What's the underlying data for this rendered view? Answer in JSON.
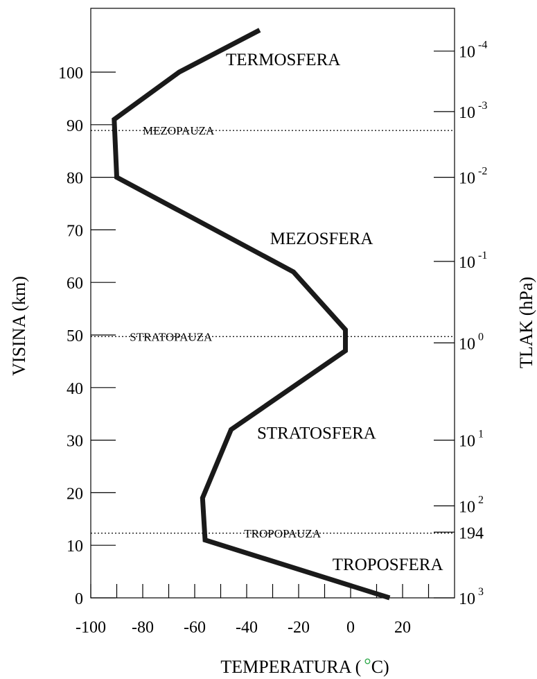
{
  "chart_data": {
    "type": "line",
    "xlabel_prefix": "TEMPERATURA (",
    "xlabel_degree": "°",
    "xlabel_suffix": "C)",
    "ylabel": "VISINA (km)",
    "y2label": "TLAK (hPa)",
    "xlim": [
      -100,
      40
    ],
    "ylim": [
      0,
      110
    ],
    "x_ticks": [
      -100,
      -80,
      -60,
      -40,
      -20,
      0,
      20
    ],
    "x_tick_labels": [
      "-100",
      "-80",
      "-60",
      "-40",
      "-20",
      "0",
      "20"
    ],
    "x_minor_ticks": [
      -90,
      -70,
      -50,
      -30,
      -10,
      10,
      30
    ],
    "y_ticks": [
      0,
      10,
      20,
      30,
      40,
      50,
      60,
      70,
      80,
      90,
      100
    ],
    "y_tick_labels": [
      "0",
      "10",
      "20",
      "30",
      "40",
      "50",
      "60",
      "70",
      "80",
      "90",
      "100"
    ],
    "pressure_ticks": [
      {
        "height": 0,
        "base": "10",
        "exp": "3"
      },
      {
        "height": 12.5,
        "base": "194",
        "exp": ""
      },
      {
        "height": 17.5,
        "base": "10",
        "exp": "2"
      },
      {
        "height": 30,
        "base": "10",
        "exp": "1"
      },
      {
        "height": 48.5,
        "base": "10",
        "exp": "0"
      },
      {
        "height": 64,
        "base": "10",
        "exp": "-1"
      },
      {
        "height": 80,
        "base": "10",
        "exp": "-2"
      },
      {
        "height": 92.5,
        "base": "10",
        "exp": "-3"
      },
      {
        "height": 104,
        "base": "10",
        "exp": "-4"
      }
    ],
    "series": [
      {
        "points": [
          {
            "x": 15,
            "y": 0
          },
          {
            "x": -56,
            "y": 11
          },
          {
            "x": -57,
            "y": 19
          },
          {
            "x": -46,
            "y": 32
          },
          {
            "x": -2,
            "y": 47
          },
          {
            "x": -2,
            "y": 51
          },
          {
            "x": -22,
            "y": 62
          },
          {
            "x": -90,
            "y": 80
          },
          {
            "x": -91,
            "y": 91
          },
          {
            "x": -66,
            "y": 100
          },
          {
            "x": -35,
            "y": 108
          }
        ],
        "color": "#1a1a1a"
      }
    ],
    "layers": [
      {
        "label": "TROPOSFERA",
        "x": -7,
        "y": 5.3
      },
      {
        "label": "STRATOSFERA",
        "x": -36,
        "y": 30.3
      },
      {
        "label": "MEZOSFERA",
        "x": -31,
        "y": 67.3
      },
      {
        "label": "TERMOSFERA",
        "x": -48,
        "y": 101.3
      }
    ],
    "pauses": [
      {
        "label": "TROPOPAUZA",
        "height": 12.3,
        "label_x": -41
      },
      {
        "label": "STRATOPAUZA",
        "height": 49.7,
        "label_x": -85
      },
      {
        "label": "MEZOPAUZA",
        "height": 88.9,
        "label_x": -80
      }
    ]
  }
}
